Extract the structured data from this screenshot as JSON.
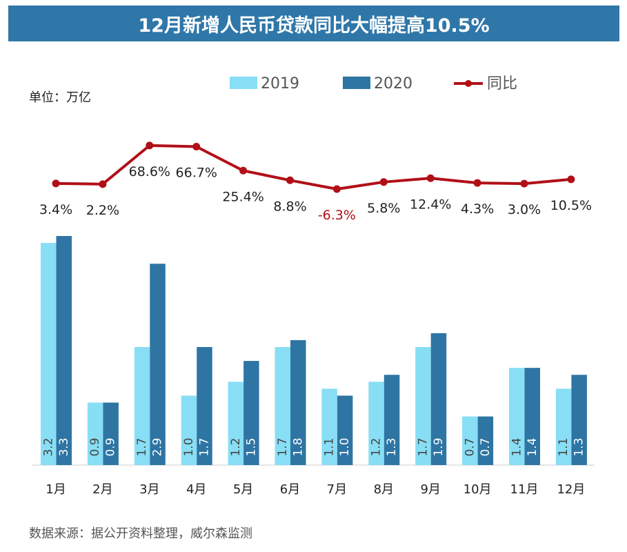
{
  "colors": {
    "series2019": "#88def5",
    "series2020": "#2e75a4",
    "yoy": "#b10f17",
    "title_bg": "#2f77a8",
    "negative_label": "#b10f17"
  },
  "chart_data": {
    "type": "bar",
    "title": "12月新增人民币贷款同比大幅提高10.5%",
    "unit_label": "单位：万亿",
    "source": "数据来源：据公开资料整理，威尔森监测",
    "categories": [
      "1月",
      "2月",
      "3月",
      "4月",
      "5月",
      "6月",
      "7月",
      "8月",
      "9月",
      "10月",
      "11月",
      "12月"
    ],
    "series": [
      {
        "name": "2019",
        "values": [
          3.2,
          0.9,
          1.7,
          1.0,
          1.2,
          1.7,
          1.1,
          1.2,
          1.7,
          0.7,
          1.4,
          1.1
        ]
      },
      {
        "name": "2020",
        "values": [
          3.3,
          0.9,
          2.9,
          1.7,
          1.5,
          1.8,
          1.0,
          1.3,
          1.9,
          0.7,
          1.4,
          1.3
        ]
      }
    ],
    "yoy": {
      "name": "同比",
      "values": [
        3.4,
        2.2,
        68.6,
        66.7,
        25.4,
        8.8,
        -6.3,
        5.8,
        12.4,
        4.3,
        3.0,
        10.5
      ],
      "labels": [
        "3.4%",
        "2.2%",
        "68.6%",
        "66.7%",
        "25.4%",
        "8.8%",
        "-6.3%",
        "5.8%",
        "12.4%",
        "4.3%",
        "3.0%",
        "10.5%"
      ]
    },
    "legend": {
      "items": [
        "2019",
        "2020",
        "同比"
      ],
      "position": "top"
    }
  }
}
